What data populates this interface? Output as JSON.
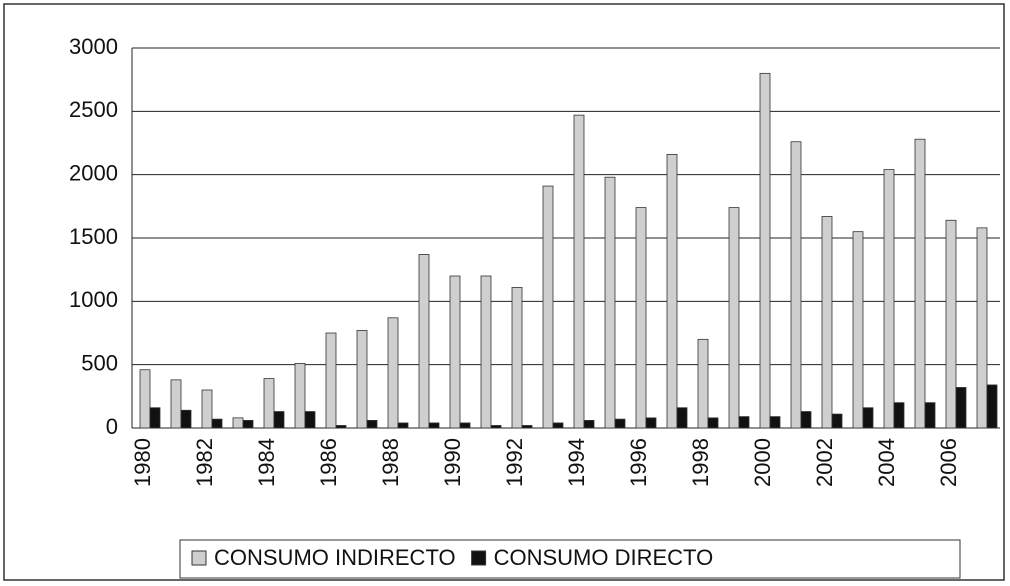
{
  "chart_data": {
    "type": "bar",
    "categories": [
      "1980",
      null,
      "1982",
      null,
      "1984",
      null,
      "1986",
      null,
      "1988",
      null,
      "1990",
      null,
      "1992",
      null,
      "1994",
      null,
      "1996",
      null,
      "1998",
      null,
      "2000",
      null,
      "2002",
      null,
      "2004",
      null,
      "2006",
      null
    ],
    "series": [
      {
        "name": "CONSUMO INDIRECTO",
        "color": "#cfcfcf",
        "values": [
          460,
          380,
          300,
          80,
          390,
          510,
          750,
          770,
          870,
          1370,
          1200,
          1200,
          1110,
          1910,
          2470,
          1980,
          1740,
          2160,
          700,
          1740,
          2800,
          2260,
          1670,
          1550,
          2040,
          2280,
          1640,
          1580
        ]
      },
      {
        "name": "CONSUMO DIRECTO",
        "color": "#111111",
        "values": [
          160,
          140,
          70,
          60,
          130,
          130,
          20,
          60,
          40,
          40,
          40,
          20,
          20,
          40,
          60,
          70,
          80,
          160,
          80,
          90,
          90,
          130,
          110,
          160,
          200,
          200,
          320,
          340
        ]
      }
    ],
    "ylim": [
      0,
      3000
    ],
    "yticks": [
      0,
      500,
      1000,
      1500,
      2000,
      2500,
      3000
    ],
    "grid": true,
    "legend": "bottom"
  }
}
